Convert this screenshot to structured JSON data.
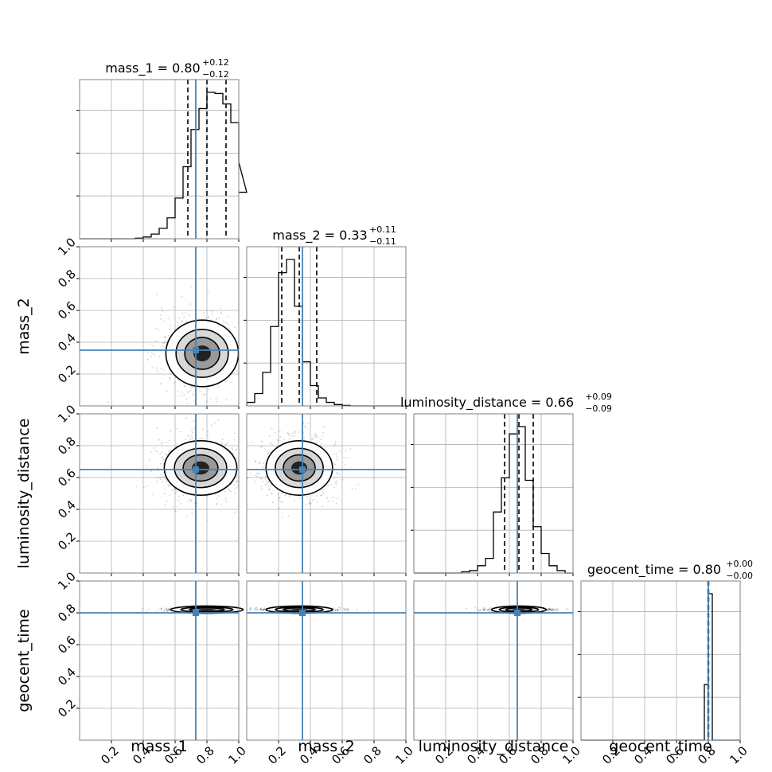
{
  "chart_data": {
    "type": "corner",
    "parameters": [
      "mass_1",
      "mass_2",
      "luminosity_distance",
      "geocent_time"
    ],
    "axis_range": [
      0,
      1
    ],
    "ticks": [
      0.2,
      0.4,
      0.6,
      0.8,
      1.0
    ],
    "tick_labels": [
      "0.2",
      "0.4",
      "0.6",
      "0.8",
      "1.0"
    ],
    "grid": true,
    "colors": {
      "truth": "#4682b4",
      "hist": "#000000",
      "quantile": "#000000",
      "grid": "#b0b0b0",
      "frame": "#808080"
    },
    "truths": [
      0.73,
      0.35,
      0.65,
      0.8
    ],
    "diag_titles": [
      {
        "text": "mass_1 = 0.80",
        "sup": "+0.12",
        "sub": "−0.12"
      },
      {
        "text": "mass_2 = 0.33",
        "sup": "+0.11",
        "sub": "−0.11"
      },
      {
        "text": "luminosity_distance = 0.66",
        "sup": "+0.09",
        "sub": "−0.09"
      },
      {
        "text": "geocent_time = 0.80",
        "sup": "+0.00",
        "sub": "−0.00"
      }
    ],
    "quantiles": [
      [
        0.68,
        0.8,
        0.92
      ],
      [
        0.22,
        0.33,
        0.44
      ],
      [
        0.57,
        0.66,
        0.75
      ],
      [
        0.798,
        0.8,
        0.802
      ]
    ],
    "histograms": [
      {
        "bin_width": 0.05,
        "start": 0.35,
        "values": [
          0.5,
          1.5,
          4,
          9,
          18,
          35,
          62,
          94,
          112,
          126,
          125,
          116,
          100,
          66,
          40
        ]
      },
      {
        "bin_width": 0.05,
        "start": 0.0,
        "values": [
          4,
          14,
          38,
          90,
          151,
          166,
          113,
          50,
          23,
          9,
          4,
          1.5,
          0.5,
          0
        ]
      },
      {
        "bin_width": 0.05,
        "start": 0.3,
        "values": [
          0.5,
          1,
          3,
          6,
          25,
          39,
          57,
          60,
          38,
          19,
          8,
          3,
          1
        ]
      },
      {
        "bin_width": 0.025,
        "start": 0.75,
        "values": [
          0,
          1.1,
          2.9,
          0
        ]
      }
    ],
    "pair_centers": {
      "1,0": [
        0.77,
        0.33
      ],
      "2,0": [
        0.76,
        0.66
      ],
      "2,1": [
        0.33,
        0.66
      ],
      "3,0": [
        0.8,
        0.82
      ],
      "3,1": [
        0.33,
        0.82
      ],
      "3,2": [
        0.66,
        0.82
      ]
    }
  }
}
